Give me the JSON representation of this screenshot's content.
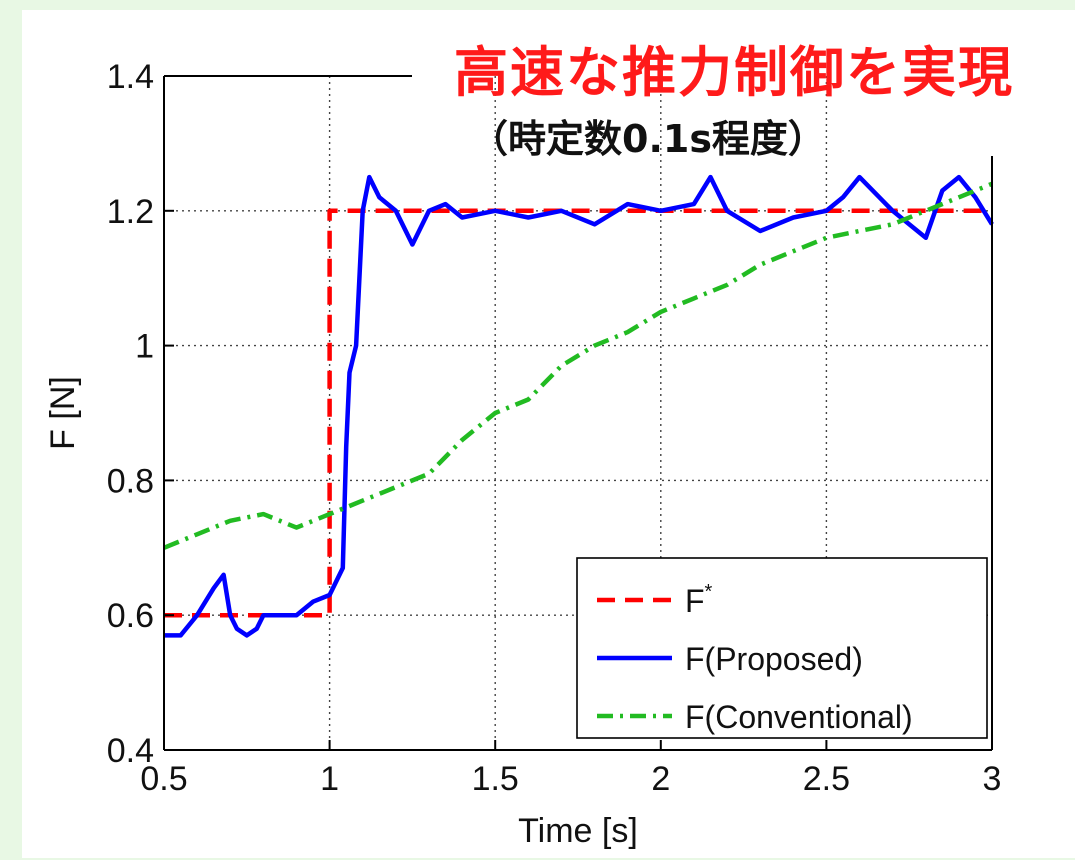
{
  "annotation": {
    "headline": "高速な推力制御を実現",
    "subtitle": "（時定数0.1s程度）"
  },
  "colors": {
    "background": "#e8f8e4",
    "headline": "#ff1a1a",
    "reference": "#ff0000",
    "proposed": "#0000ff",
    "conventional": "#22bb22"
  },
  "chart_data": {
    "type": "line",
    "title": "",
    "xlabel": "Time [s]",
    "ylabel": "F [N]",
    "xlim": [
      0.5,
      3
    ],
    "ylim": [
      0.4,
      1.4
    ],
    "xticks": [
      0.5,
      1,
      1.5,
      2,
      2.5,
      3
    ],
    "yticks": [
      0.4,
      0.6,
      0.8,
      1,
      1.2,
      1.4
    ],
    "xtick_labels": [
      "0.5",
      "1",
      "1.5",
      "2",
      "2.5",
      "3"
    ],
    "ytick_labels": [
      "0.4",
      "0.6",
      "0.8",
      "1",
      "1.2",
      "1.4"
    ],
    "grid": true,
    "legend_position": "bottom-right",
    "series": [
      {
        "name": "F*",
        "style": "dashed",
        "color": "#ff0000",
        "x": [
          0.5,
          1.0,
          1.0,
          3.0
        ],
        "y": [
          0.6,
          0.6,
          1.2,
          1.2
        ]
      },
      {
        "name": "F(Proposed)",
        "style": "solid",
        "color": "#0000ff",
        "x": [
          0.5,
          0.55,
          0.6,
          0.65,
          0.68,
          0.7,
          0.72,
          0.75,
          0.78,
          0.8,
          0.85,
          0.9,
          0.95,
          1.0,
          1.02,
          1.04,
          1.05,
          1.06,
          1.08,
          1.1,
          1.12,
          1.15,
          1.2,
          1.25,
          1.3,
          1.35,
          1.4,
          1.5,
          1.6,
          1.7,
          1.8,
          1.9,
          2.0,
          2.1,
          2.15,
          2.2,
          2.3,
          2.4,
          2.5,
          2.55,
          2.6,
          2.7,
          2.8,
          2.85,
          2.9,
          2.95,
          3.0
        ],
        "y": [
          0.57,
          0.57,
          0.6,
          0.64,
          0.66,
          0.6,
          0.58,
          0.57,
          0.58,
          0.6,
          0.6,
          0.6,
          0.62,
          0.63,
          0.65,
          0.67,
          0.85,
          0.96,
          1.0,
          1.2,
          1.25,
          1.22,
          1.2,
          1.15,
          1.2,
          1.21,
          1.19,
          1.2,
          1.19,
          1.2,
          1.18,
          1.21,
          1.2,
          1.21,
          1.25,
          1.2,
          1.17,
          1.19,
          1.2,
          1.22,
          1.25,
          1.2,
          1.16,
          1.23,
          1.25,
          1.22,
          1.18
        ]
      },
      {
        "name": "F(Conventional)",
        "style": "dashdot",
        "color": "#22bb22",
        "x": [
          0.5,
          0.6,
          0.7,
          0.8,
          0.9,
          1.0,
          1.1,
          1.2,
          1.3,
          1.4,
          1.5,
          1.6,
          1.7,
          1.8,
          1.9,
          2.0,
          2.1,
          2.2,
          2.3,
          2.4,
          2.5,
          2.6,
          2.7,
          2.8,
          2.9,
          3.0
        ],
        "y": [
          0.7,
          0.72,
          0.74,
          0.75,
          0.73,
          0.75,
          0.77,
          0.79,
          0.81,
          0.86,
          0.9,
          0.92,
          0.97,
          1.0,
          1.02,
          1.05,
          1.07,
          1.09,
          1.12,
          1.14,
          1.16,
          1.17,
          1.18,
          1.2,
          1.22,
          1.24
        ]
      }
    ]
  }
}
